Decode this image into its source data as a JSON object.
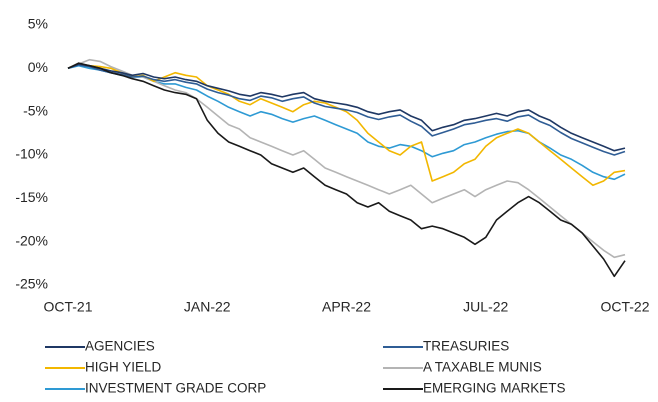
{
  "chart_data": {
    "type": "line",
    "categories": [
      "OCT-21",
      null,
      null,
      null,
      null,
      null,
      null,
      null,
      null,
      null,
      null,
      null,
      null,
      "JAN-22",
      null,
      null,
      null,
      null,
      null,
      null,
      null,
      null,
      null,
      null,
      null,
      null,
      "APR-22",
      null,
      null,
      null,
      null,
      null,
      null,
      null,
      null,
      null,
      null,
      null,
      null,
      "JUL-22",
      null,
      null,
      null,
      null,
      null,
      null,
      null,
      null,
      null,
      null,
      null,
      null,
      "OCT-22"
    ],
    "ylim": [
      -25,
      5
    ],
    "yticks": [
      {
        "value": 5,
        "label": "5%"
      },
      {
        "value": 0,
        "label": "0%"
      },
      {
        "value": -5,
        "label": "-5%"
      },
      {
        "value": -10,
        "label": "-10%"
      },
      {
        "value": -15,
        "label": "-15%"
      },
      {
        "value": -20,
        "label": "-20%"
      },
      {
        "value": -25,
        "label": "-25%"
      }
    ],
    "series": [
      {
        "name": "AGENCIES",
        "color": "#1f3864",
        "values": [
          0,
          0.5,
          0.3,
          0,
          -0.3,
          -0.5,
          -0.8,
          -0.6,
          -1,
          -1.2,
          -1,
          -1.3,
          -1.5,
          -2,
          -2.3,
          -2.6,
          -3,
          -3.2,
          -2.8,
          -3,
          -3.3,
          -3,
          -2.8,
          -3.5,
          -3.8,
          -4,
          -4.2,
          -4.5,
          -5,
          -5.3,
          -5,
          -4.8,
          -5.5,
          -6,
          -7.2,
          -6.8,
          -6.5,
          -6,
          -5.8,
          -5.5,
          -5.2,
          -5.5,
          -5,
          -4.8,
          -5.5,
          -6,
          -6.8,
          -7.5,
          -8,
          -8.5,
          -9,
          -9.5,
          -9.2
        ]
      },
      {
        "name": "TREASURIES",
        "color": "#2f5d95",
        "values": [
          0,
          0.4,
          0.2,
          -0.2,
          -0.5,
          -0.7,
          -1,
          -0.9,
          -1.3,
          -1.5,
          -1.3,
          -1.6,
          -1.8,
          -2.4,
          -2.8,
          -3.1,
          -3.5,
          -3.7,
          -3.2,
          -3.4,
          -3.8,
          -3.5,
          -3.3,
          -4,
          -4.4,
          -4.6,
          -4.8,
          -5.1,
          -5.6,
          -5.9,
          -5.6,
          -5.4,
          -6.1,
          -6.7,
          -7.8,
          -7.4,
          -7,
          -6.5,
          -6.3,
          -6,
          -5.8,
          -6.1,
          -5.6,
          -5.4,
          -6.1,
          -6.6,
          -7.4,
          -8.1,
          -8.6,
          -9.1,
          -9.6,
          -10,
          -9.6
        ]
      },
      {
        "name": "HIGH YIELD",
        "color": "#f2b700",
        "values": [
          0,
          0.5,
          0.3,
          0.2,
          0,
          -0.5,
          -1,
          -0.8,
          -1.5,
          -1,
          -0.5,
          -0.8,
          -1,
          -2,
          -2.5,
          -3,
          -3.8,
          -4.2,
          -3.5,
          -4,
          -4.5,
          -5,
          -4.2,
          -3.8,
          -4,
          -4.5,
          -5,
          -6,
          -7.5,
          -8.5,
          -9.5,
          -10,
          -9,
          -8.5,
          -13,
          -12.5,
          -12,
          -11,
          -10.5,
          -9,
          -8,
          -7.5,
          -7,
          -7.5,
          -8.5,
          -9.5,
          -10.5,
          -11.5,
          -12.5,
          -13.5,
          -13,
          -12,
          -11.8
        ]
      },
      {
        "name": "A TAXABLE MUNIS",
        "color": "#b4b4b4",
        "values": [
          0,
          0.5,
          1,
          0.8,
          0.2,
          -0.3,
          -0.8,
          -1,
          -1.5,
          -2,
          -2.5,
          -2.8,
          -3.5,
          -4.5,
          -5.5,
          -6.5,
          -7,
          -8,
          -8.5,
          -9,
          -9.5,
          -10,
          -9.5,
          -10.5,
          -11.5,
          -12,
          -12.5,
          -13,
          -13.5,
          -14,
          -14.5,
          -14,
          -13.5,
          -14.5,
          -15.5,
          -15,
          -14.5,
          -14,
          -14.8,
          -14,
          -13.5,
          -13,
          -13.2,
          -14,
          -15,
          -16,
          -17,
          -18,
          -19,
          -20,
          -21,
          -21.8,
          -21.5
        ]
      },
      {
        "name": "INVESTMENT GRADE CORP",
        "color": "#2e9ad4",
        "values": [
          0,
          0.3,
          0,
          -0.2,
          -0.5,
          -0.8,
          -1,
          -1,
          -1.5,
          -1.8,
          -1.8,
          -2.2,
          -2.5,
          -3.2,
          -3.8,
          -4.5,
          -5,
          -5.5,
          -5,
          -5.3,
          -5.8,
          -6.2,
          -5.8,
          -5.5,
          -6,
          -6.5,
          -7,
          -7.5,
          -8.5,
          -9,
          -9.2,
          -8.8,
          -9,
          -9.5,
          -10.2,
          -9.8,
          -9.5,
          -8.8,
          -8.5,
          -8,
          -7.6,
          -7.3,
          -7.2,
          -7.5,
          -8.5,
          -9.2,
          -10,
          -10.5,
          -11.2,
          -12,
          -12.5,
          -12.8,
          -12.2
        ]
      },
      {
        "name": "EMERGING MARKETS",
        "color": "#1a1a1a",
        "values": [
          0,
          0.6,
          0.3,
          0,
          -0.5,
          -0.8,
          -1.2,
          -1.5,
          -2,
          -2.5,
          -2.8,
          -3,
          -3.5,
          -6,
          -7.5,
          -8.5,
          -9,
          -9.5,
          -10,
          -11,
          -11.5,
          -12,
          -11.5,
          -12.5,
          -13.5,
          -14,
          -14.5,
          -15.5,
          -16,
          -15.5,
          -16.5,
          -17,
          -17.5,
          -18.5,
          -18.2,
          -18.5,
          -19,
          -19.5,
          -20.3,
          -19.5,
          -17.5,
          -16.5,
          -15.5,
          -14.8,
          -15.5,
          -16.5,
          -17.5,
          -18,
          -19,
          -20.5,
          -22,
          -24,
          -22.2
        ]
      }
    ]
  }
}
